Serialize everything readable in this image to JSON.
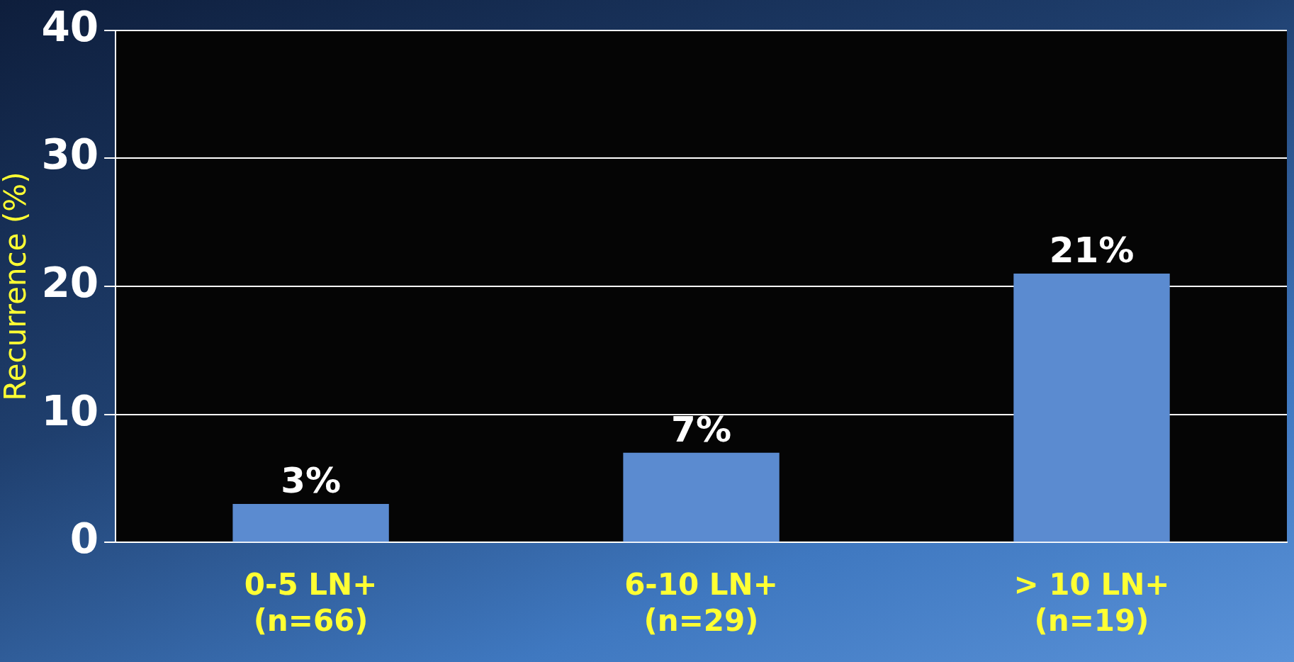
{
  "chart_data": {
    "type": "bar",
    "ylabel": "Recurrence (%)",
    "categories": [
      "0-5 LN+\n(n=66)",
      "6-10 LN+\n(n=29)",
      "> 10 LN+\n(n=19)"
    ],
    "values": [
      3,
      7,
      21
    ],
    "color": "#5b8bd0",
    "value_labels": [
      "3%",
      "7%",
      "21%"
    ],
    "ylim": [
      0,
      40
    ],
    "yticks": [
      0,
      10,
      20,
      30,
      40
    ],
    "grid": "y",
    "legend": false
  }
}
